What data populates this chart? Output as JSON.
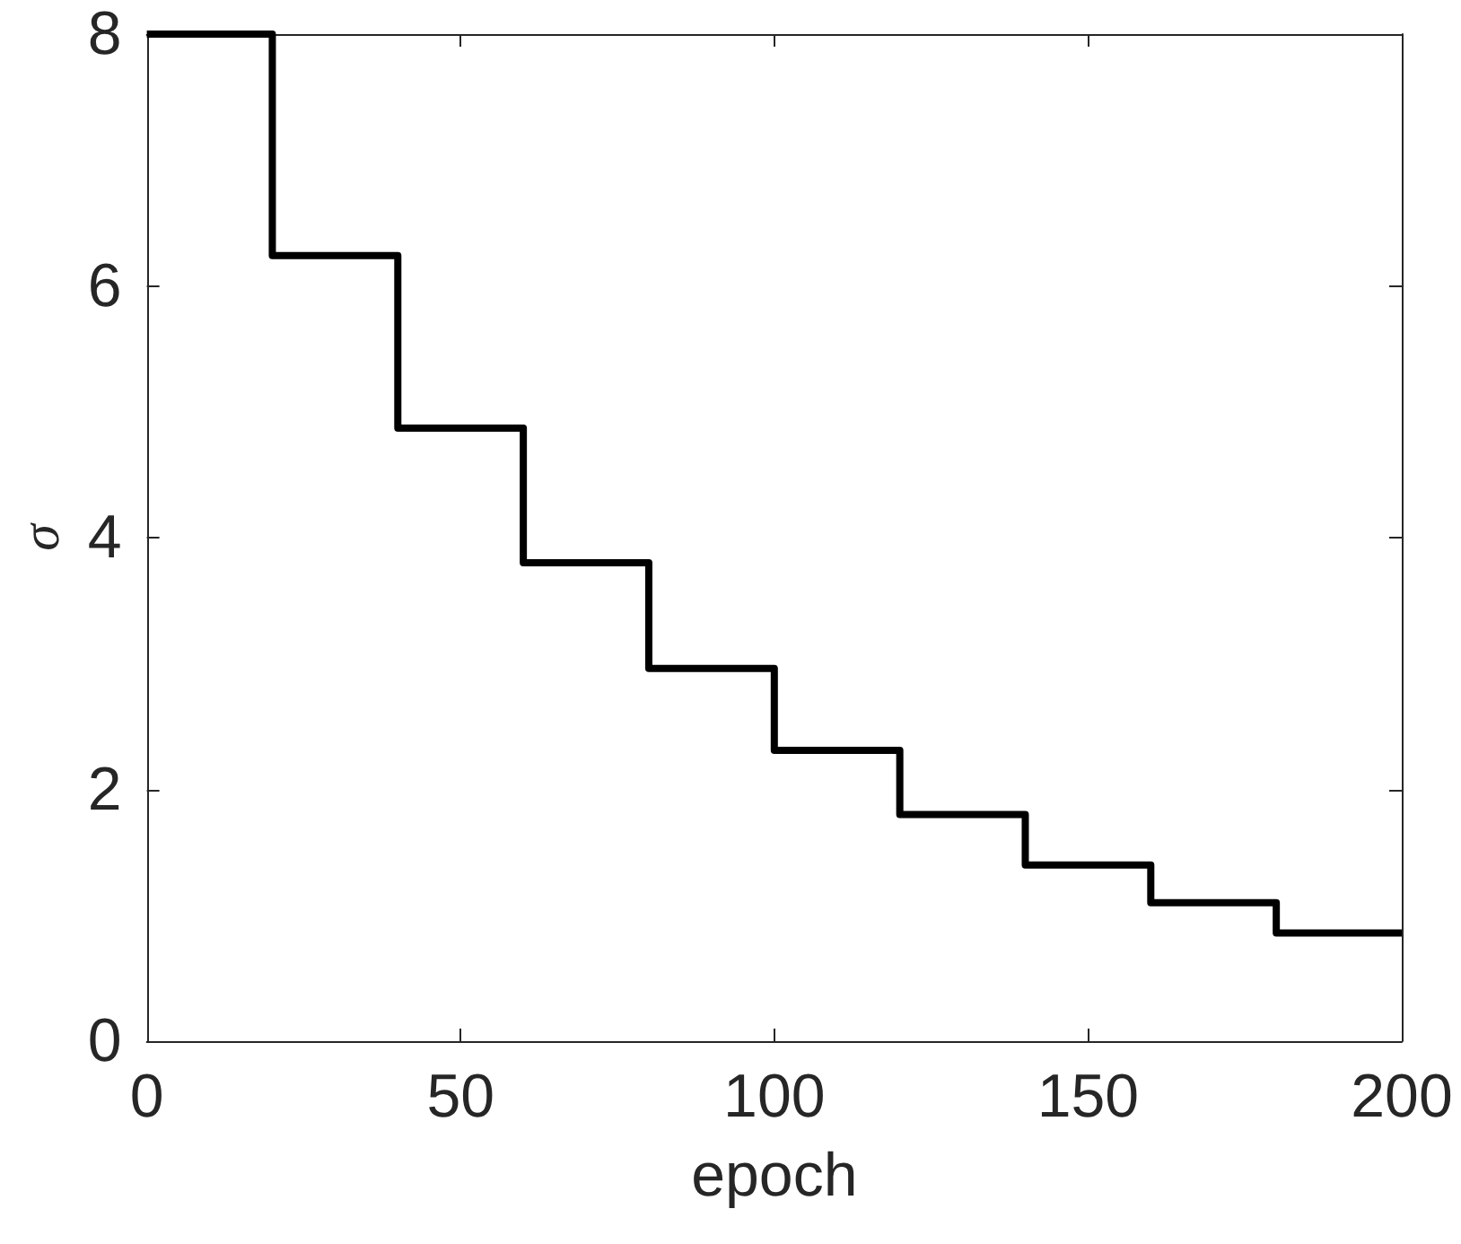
{
  "chart_data": {
    "type": "step",
    "xlabel": "epoch",
    "ylabel": "σ",
    "x": [
      0,
      20,
      40,
      60,
      80,
      100,
      120,
      140,
      160,
      180,
      200
    ],
    "series": [
      {
        "color": "#000000",
        "values": [
          8,
          6.24,
          4.87,
          3.8,
          2.96,
          2.31,
          1.8,
          1.4,
          1.1,
          0.86,
          0.86
        ]
      }
    ],
    "xlim": [
      0,
      200
    ],
    "xticks": [
      0,
      50,
      100,
      150,
      200
    ],
    "ylim": [
      0,
      8
    ],
    "yticks": [
      0,
      2,
      4,
      6,
      8
    ],
    "grid": false,
    "marker": "none",
    "line_style": "solid"
  }
}
